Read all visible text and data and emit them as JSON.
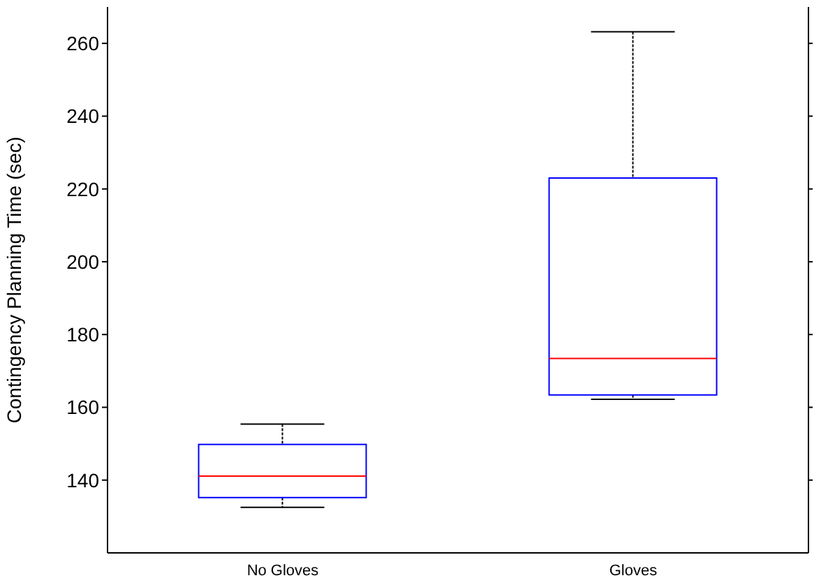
{
  "chart_data": {
    "type": "box",
    "ylabel": "Contingency Planning Time (sec)",
    "categories": [
      "No Gloves",
      "Gloves"
    ],
    "color": "#0000ff",
    "boxes": [
      {
        "low": 132.5,
        "q1": 135.2,
        "median": 141.1,
        "q3": 149.8,
        "high": 155.4
      },
      {
        "low": 162.2,
        "q1": 163.4,
        "median": 173.4,
        "q3": 223,
        "high": 263.2
      }
    ],
    "ylim": [
      120,
      270
    ],
    "yticks": [
      140,
      160,
      180,
      200,
      220,
      240,
      260
    ],
    "grid": false
  }
}
